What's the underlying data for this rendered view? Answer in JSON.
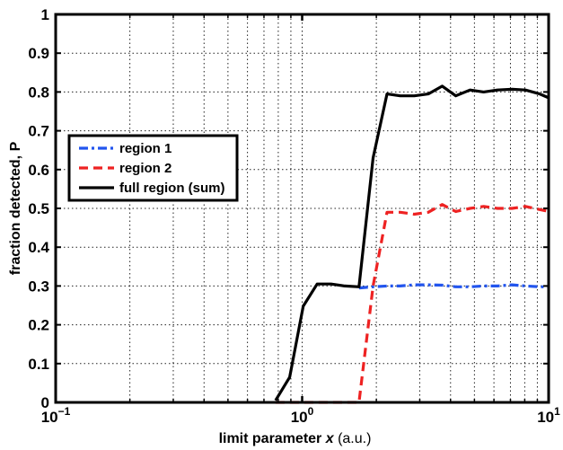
{
  "chart_data": {
    "type": "line",
    "xscale": "log",
    "xlim": [
      0.1,
      10
    ],
    "ylim": [
      0,
      1
    ],
    "grid": true,
    "legend_position": "middle-left",
    "xlabel_parts": [
      {
        "text": "limit parameter ",
        "italic": false
      },
      {
        "text": "x",
        "italic": true
      },
      {
        "text": "  (a.u.)",
        "italic": false,
        "normal_weight": true
      }
    ],
    "ylabel": "fraction detected, P",
    "y_ticks": [
      "0",
      "0.1",
      "0.2",
      "0.3",
      "0.4",
      "0.5",
      "0.6",
      "0.7",
      "0.8",
      "0.9",
      "1"
    ],
    "x_ticks": [
      {
        "base": "10",
        "exp": "−1",
        "value": 0.1
      },
      {
        "base": "10",
        "exp": "0",
        "value": 1
      },
      {
        "base": "10",
        "exp": "1",
        "value": 10
      }
    ],
    "series": [
      {
        "name": "region 1",
        "color": "#2255ee",
        "dash": "dashdot",
        "x": [
          1.7,
          1.94,
          2.21,
          2.5,
          2.85,
          3.25,
          3.7,
          4.2,
          4.8,
          5.45,
          6.2,
          7.1,
          8.05,
          9.2,
          10.0
        ],
        "y": [
          0.295,
          0.298,
          0.3,
          0.3,
          0.303,
          0.303,
          0.302,
          0.298,
          0.298,
          0.3,
          0.3,
          0.303,
          0.3,
          0.298,
          0.298
        ]
      },
      {
        "name": "region 2",
        "color": "#ee2222",
        "dash": "dashed",
        "x": [
          0.78,
          0.89,
          1.01,
          1.15,
          1.31,
          1.49,
          1.7,
          1.94,
          2.21,
          2.5,
          2.85,
          3.25,
          3.7,
          4.2,
          4.8,
          5.45,
          6.2,
          7.1,
          8.05,
          9.2,
          10.0
        ],
        "y": [
          0.0,
          0.0,
          0.0,
          0.0,
          0.0,
          0.0,
          0.0,
          0.3,
          0.49,
          0.49,
          0.485,
          0.49,
          0.51,
          0.492,
          0.5,
          0.505,
          0.5,
          0.5,
          0.505,
          0.497,
          0.492
        ]
      },
      {
        "name": "full region (sum)",
        "color": "#000000",
        "dash": "solid",
        "x": [
          0.78,
          0.89,
          1.01,
          1.15,
          1.31,
          1.49,
          1.7,
          1.94,
          2.21,
          2.5,
          2.85,
          3.25,
          3.7,
          4.2,
          4.8,
          5.45,
          6.2,
          7.1,
          8.05,
          9.2,
          10.0
        ],
        "y": [
          0.005,
          0.065,
          0.248,
          0.305,
          0.305,
          0.3,
          0.298,
          0.63,
          0.795,
          0.79,
          0.79,
          0.795,
          0.815,
          0.79,
          0.805,
          0.8,
          0.805,
          0.807,
          0.805,
          0.795,
          0.785
        ]
      }
    ]
  }
}
